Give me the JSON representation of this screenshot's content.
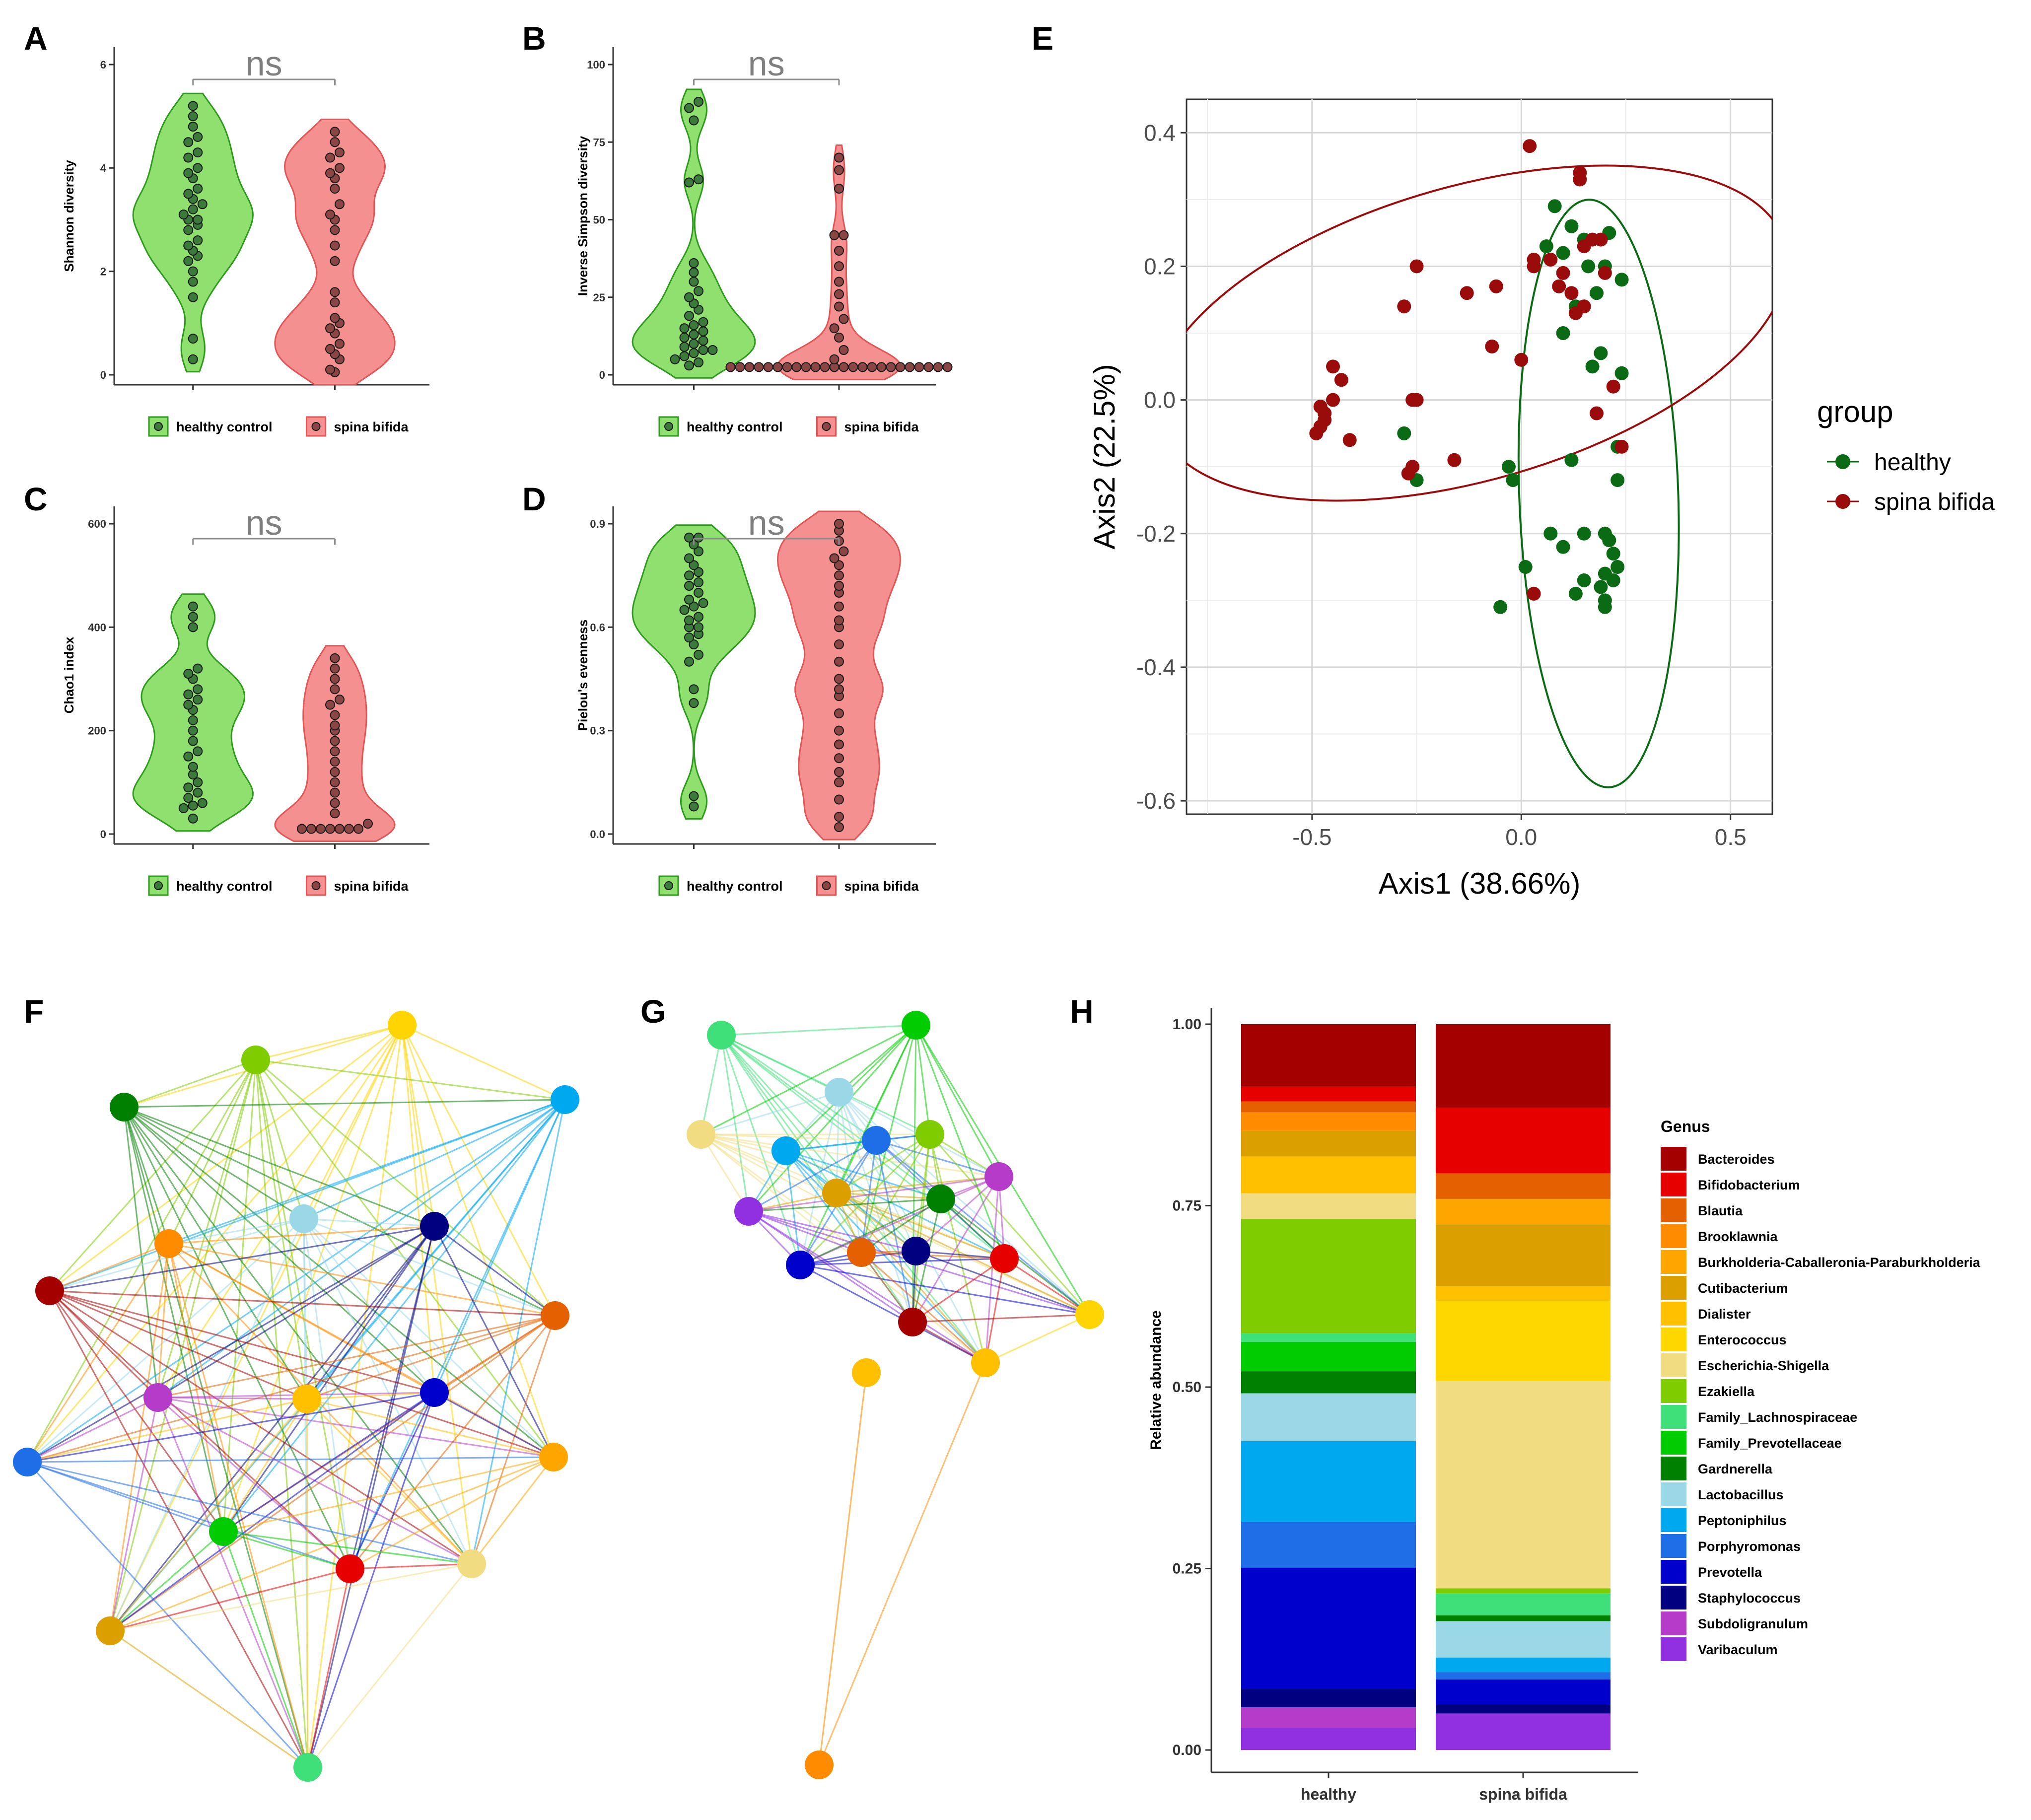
{
  "chart_data": [
    {
      "id": "A",
      "type": "violin",
      "panel_label": "A",
      "ylabel": "Shannon diversity",
      "ylim": [
        0,
        6
      ],
      "yticks": [
        "0",
        "2",
        "4",
        "6"
      ],
      "significance": "ns",
      "groups": [
        {
          "name": "healthy control",
          "fill": "#90e070",
          "stroke": "#2e9a1e",
          "dot": "#3c7a3c",
          "values": [
            0.3,
            0.7,
            1.5,
            1.8,
            2.0,
            2.2,
            2.3,
            2.4,
            2.5,
            2.6,
            2.8,
            2.9,
            3.0,
            3.0,
            3.1,
            3.2,
            3.3,
            3.4,
            3.5,
            3.6,
            3.8,
            3.9,
            4.0,
            4.2,
            4.3,
            4.5,
            4.6,
            4.8,
            5.0,
            5.2
          ]
        },
        {
          "name": "spina bifida",
          "fill": "#f49090",
          "stroke": "#e05555",
          "dot": "#8a4545",
          "values": [
            0.05,
            0.1,
            0.3,
            0.4,
            0.5,
            0.6,
            0.8,
            0.9,
            1.0,
            1.1,
            1.4,
            1.6,
            2.2,
            2.5,
            2.8,
            3.0,
            3.1,
            3.3,
            3.6,
            3.8,
            3.9,
            4.0,
            4.2,
            4.3,
            4.5,
            4.7
          ]
        }
      ]
    },
    {
      "id": "B",
      "type": "violin",
      "panel_label": "B",
      "ylabel": "Inverse Simpson diversity",
      "ylim": [
        0,
        100
      ],
      "yticks": [
        "0",
        "25",
        "50",
        "75",
        "100"
      ],
      "significance": "ns",
      "groups": [
        {
          "name": "healthy control",
          "fill": "#90e070",
          "stroke": "#2e9a1e",
          "dot": "#3c7a3c",
          "values": [
            3,
            4,
            5,
            6,
            7,
            8,
            8,
            9,
            10,
            11,
            12,
            13,
            14,
            15,
            16,
            17,
            19,
            21,
            23,
            25,
            27,
            30,
            33,
            36,
            62,
            63,
            82,
            86,
            88
          ]
        },
        {
          "name": "spina bifida",
          "fill": "#f49090",
          "stroke": "#e05555",
          "dot": "#8a4545",
          "values": [
            2.5,
            2.5,
            2.5,
            2.5,
            2.5,
            2.5,
            2.5,
            2.5,
            2.5,
            2.5,
            2.5,
            2.5,
            2.5,
            2.5,
            2.5,
            2.5,
            2.5,
            2.5,
            2.5,
            2.5,
            2.5,
            2.5,
            2.5,
            2.5,
            5,
            8,
            12,
            15,
            18,
            22,
            26,
            30,
            35,
            40,
            45,
            45,
            60,
            66,
            70
          ]
        }
      ]
    },
    {
      "id": "C",
      "type": "violin",
      "panel_label": "C",
      "ylabel": "Chao1 index",
      "ylim": [
        0,
        600
      ],
      "yticks": [
        "0",
        "200",
        "400",
        "600"
      ],
      "significance": "ns",
      "groups": [
        {
          "name": "healthy control",
          "fill": "#90e070",
          "stroke": "#2e9a1e",
          "dot": "#3c7a3c",
          "values": [
            30,
            50,
            55,
            60,
            70,
            80,
            90,
            100,
            115,
            130,
            150,
            160,
            180,
            200,
            220,
            240,
            250,
            260,
            270,
            280,
            300,
            310,
            320,
            400,
            420,
            440
          ]
        },
        {
          "name": "spina bifida",
          "fill": "#f49090",
          "stroke": "#e05555",
          "dot": "#8a4545",
          "values": [
            10,
            10,
            10,
            10,
            10,
            10,
            10,
            20,
            40,
            60,
            80,
            100,
            120,
            140,
            160,
            180,
            200,
            210,
            230,
            250,
            260,
            280,
            300,
            320,
            340
          ]
        }
      ]
    },
    {
      "id": "D",
      "type": "violin",
      "panel_label": "D",
      "ylabel": "Pielou's evenness",
      "ylim": [
        0,
        0.9
      ],
      "yticks": [
        "0.0",
        "0.3",
        "0.6",
        "0.9"
      ],
      "significance": "ns",
      "groups": [
        {
          "name": "healthy control",
          "fill": "#90e070",
          "stroke": "#2e9a1e",
          "dot": "#3c7a3c",
          "values": [
            0.08,
            0.11,
            0.38,
            0.42,
            0.5,
            0.52,
            0.55,
            0.57,
            0.58,
            0.6,
            0.6,
            0.62,
            0.63,
            0.65,
            0.66,
            0.67,
            0.68,
            0.7,
            0.72,
            0.73,
            0.75,
            0.76,
            0.78,
            0.8,
            0.82,
            0.84,
            0.86,
            0.86
          ]
        },
        {
          "name": "spina bifida",
          "fill": "#f49090",
          "stroke": "#e05555",
          "dot": "#8a4545",
          "values": [
            0.02,
            0.05,
            0.1,
            0.15,
            0.18,
            0.22,
            0.26,
            0.3,
            0.35,
            0.4,
            0.42,
            0.45,
            0.5,
            0.55,
            0.6,
            0.62,
            0.66,
            0.7,
            0.72,
            0.75,
            0.78,
            0.8,
            0.82,
            0.85,
            0.88,
            0.9
          ]
        }
      ]
    },
    {
      "id": "E",
      "type": "scatter",
      "panel_label": "E",
      "xlabel": "Axis1 (38.66%)",
      "ylabel": "Axis2 (22.5%)",
      "xlim": [
        -0.8,
        0.6
      ],
      "ylim": [
        -0.62,
        0.45
      ],
      "xticks": [
        -0.5,
        0.0,
        0.5
      ],
      "xtick_labels": [
        "-0.5",
        "0.0",
        "0.5"
      ],
      "yticks": [
        0.4,
        0.2,
        0.0,
        -0.2,
        -0.4,
        -0.6
      ],
      "ytick_labels": [
        "0.4",
        "0.2",
        "0.0",
        "-0.2",
        "-0.4",
        "-0.6"
      ],
      "legend_title": "group",
      "legend_position": "right",
      "series": [
        {
          "name": "healthy",
          "color": "#0b6a14",
          "points": [
            [
              0.08,
              0.29
            ],
            [
              0.12,
              0.26
            ],
            [
              0.06,
              0.23
            ],
            [
              0.1,
              0.22
            ],
            [
              0.15,
              0.24
            ],
            [
              0.21,
              0.25
            ],
            [
              0.24,
              0.18
            ],
            [
              0.2,
              0.2
            ],
            [
              0.17,
              0.05
            ],
            [
              0.19,
              0.07
            ],
            [
              0.24,
              0.04
            ],
            [
              0.13,
              0.14
            ],
            [
              0.1,
              0.1
            ],
            [
              -0.03,
              -0.1
            ],
            [
              -0.02,
              -0.12
            ],
            [
              0.12,
              -0.09
            ],
            [
              0.23,
              -0.07
            ],
            [
              0.23,
              -0.12
            ],
            [
              0.07,
              -0.2
            ],
            [
              0.1,
              -0.22
            ],
            [
              0.15,
              -0.2
            ],
            [
              0.2,
              -0.2
            ],
            [
              0.21,
              -0.21
            ],
            [
              0.22,
              -0.23
            ],
            [
              0.15,
              -0.27
            ],
            [
              0.2,
              -0.26
            ],
            [
              0.23,
              -0.25
            ],
            [
              0.22,
              -0.27
            ],
            [
              0.19,
              -0.28
            ],
            [
              0.13,
              -0.29
            ],
            [
              0.2,
              -0.3
            ],
            [
              0.2,
              -0.31
            ],
            [
              -0.05,
              -0.31
            ],
            [
              0.01,
              -0.25
            ],
            [
              -0.25,
              -0.12
            ],
            [
              -0.28,
              -0.05
            ],
            [
              0.16,
              0.2
            ],
            [
              0.18,
              0.16
            ]
          ]
        },
        {
          "name": "spina bifida",
          "color": "#9a0c0c",
          "points": [
            [
              0.02,
              0.38
            ],
            [
              0.14,
              0.33
            ],
            [
              0.14,
              0.34
            ],
            [
              0.19,
              0.24
            ],
            [
              0.17,
              0.24
            ],
            [
              0.15,
              0.23
            ],
            [
              0.1,
              0.19
            ],
            [
              0.12,
              0.16
            ],
            [
              0.03,
              0.2
            ],
            [
              0.03,
              0.21
            ],
            [
              0.07,
              0.21
            ],
            [
              0.2,
              0.19
            ],
            [
              0.15,
              0.14
            ],
            [
              0.13,
              0.13
            ],
            [
              0.09,
              0.17
            ],
            [
              -0.25,
              0.2
            ],
            [
              -0.28,
              0.14
            ],
            [
              -0.13,
              0.16
            ],
            [
              -0.06,
              0.17
            ],
            [
              0.0,
              0.06
            ],
            [
              -0.07,
              0.08
            ],
            [
              -0.45,
              0.05
            ],
            [
              -0.43,
              0.03
            ],
            [
              -0.48,
              -0.01
            ],
            [
              -0.47,
              -0.02
            ],
            [
              -0.47,
              -0.03
            ],
            [
              -0.48,
              -0.04
            ],
            [
              -0.49,
              -0.05
            ],
            [
              -0.45,
              0.0
            ],
            [
              -0.41,
              -0.06
            ],
            [
              -0.26,
              0.0
            ],
            [
              -0.25,
              0.0
            ],
            [
              -0.27,
              -0.11
            ],
            [
              -0.26,
              -0.1
            ],
            [
              -0.16,
              -0.09
            ],
            [
              0.18,
              -0.02
            ],
            [
              0.24,
              -0.07
            ],
            [
              0.03,
              -0.29
            ],
            [
              0.22,
              0.02
            ]
          ]
        }
      ],
      "ellipses": [
        {
          "group": "healthy",
          "center": [
            0.185,
            -0.14
          ],
          "rx": 0.19,
          "ry": 0.44,
          "angle_deg": -2
        },
        {
          "group": "spina bifida",
          "center": [
            -0.12,
            0.1
          ],
          "rx": 0.78,
          "ry": 0.22,
          "angle_deg": -16
        }
      ]
    },
    {
      "id": "H",
      "type": "stacked_bar",
      "panel_label": "H",
      "ylabel": "Relative abundance",
      "ylim": [
        0,
        1
      ],
      "yticks": [
        "0.00",
        "0.25",
        "0.50",
        "0.75",
        "1.00"
      ],
      "categories": [
        "healthy",
        "spina bifida"
      ],
      "legend_title": "Genus",
      "legend_position": "right",
      "genera": [
        {
          "name": "Bacteroides",
          "color": "#a50000",
          "values": [
            0.085,
            0.115
          ]
        },
        {
          "name": "Bifidobacterium",
          "color": "#e60000",
          "values": [
            0.02,
            0.09
          ]
        },
        {
          "name": "Blautia",
          "color": "#e46000",
          "values": [
            0.015,
            0.035
          ]
        },
        {
          "name": "Brooklawnia",
          "color": "#ff8c00",
          "values": [
            0.025,
            0.0
          ]
        },
        {
          "name": "Burkholderia-Caballeronia-Paraburkholderia",
          "color": "#ffa500",
          "values": [
            0.0,
            0.035
          ]
        },
        {
          "name": "Cutibacterium",
          "color": "#dba000",
          "values": [
            0.035,
            0.085
          ]
        },
        {
          "name": "Dialister",
          "color": "#ffc000",
          "values": [
            0.05,
            0.02
          ]
        },
        {
          "name": "Enterococcus",
          "color": "#ffd700",
          "values": [
            0.0,
            0.11
          ]
        },
        {
          "name": "Escherichia-Shigella",
          "color": "#f2dc82",
          "values": [
            0.035,
            0.285
          ]
        },
        {
          "name": "Ezakiella",
          "color": "#7fcc00",
          "values": [
            0.155,
            0.007
          ]
        },
        {
          "name": "Family_Lachnospiraceae",
          "color": "#3fe07a",
          "values": [
            0.012,
            0.03
          ]
        },
        {
          "name": "Family_Prevotellaceae",
          "color": "#00cc00",
          "values": [
            0.04,
            0.0
          ]
        },
        {
          "name": "Gardnerella",
          "color": "#008000",
          "values": [
            0.03,
            0.008
          ]
        },
        {
          "name": "Lactobacillus",
          "color": "#9ad8e8",
          "values": [
            0.065,
            0.05
          ]
        },
        {
          "name": "Peptoniphilus",
          "color": "#00a8f0",
          "values": [
            0.11,
            0.02
          ]
        },
        {
          "name": "Porphyromonas",
          "color": "#1e6ee8",
          "values": [
            0.062,
            0.01
          ]
        },
        {
          "name": "Prevotella",
          "color": "#0000cd",
          "values": [
            0.165,
            0.035
          ]
        },
        {
          "name": "Staphylococcus",
          "color": "#000080",
          "values": [
            0.025,
            0.012
          ]
        },
        {
          "name": "Subdoligranulum",
          "color": "#b43cc8",
          "values": [
            0.028,
            0.0
          ]
        },
        {
          "name": "Varibaculum",
          "color": "#9030e0",
          "values": [
            0.03,
            0.05
          ]
        }
      ]
    }
  ],
  "networks": [
    {
      "id": "F",
      "panel_label": "F",
      "nodes": [
        "#ffd400",
        "#7fcc00",
        "#008000",
        "#00a8f0",
        "#9ad8e8",
        "#ff8c00",
        "#000080",
        "#a50000",
        "#e46000",
        "#b43cc8",
        "#ffc000",
        "#0000cd",
        "#1e6ee8",
        "#ffa500",
        "#00cc00",
        "#e60000",
        "#f2dc82",
        "#dba000",
        "#3fe07a"
      ]
    },
    {
      "id": "G",
      "panel_label": "G",
      "nodes": [
        "#3fe07a",
        "#00cc00",
        "#9ad8e8",
        "#f2dc82",
        "#00a8f0",
        "#1e6ee8",
        "#7fcc00",
        "#dba000",
        "#b43cc8",
        "#008000",
        "#9030e0",
        "#0000cd",
        "#e46000",
        "#000080",
        "#e60000",
        "#a50000",
        "#ffd400",
        "#ffc000",
        "#ff8c00"
      ]
    }
  ]
}
